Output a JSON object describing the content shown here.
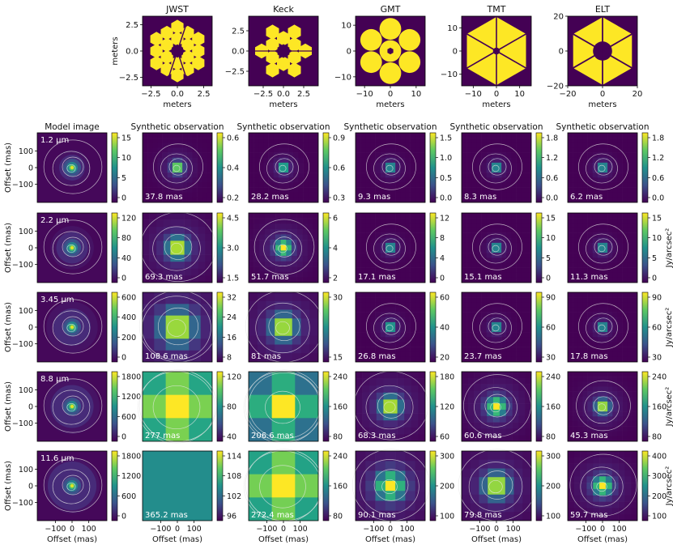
{
  "colors": {
    "viridis_dark": "#440154",
    "viridis_yellow": "#fde725",
    "contour": "#e8e8e8",
    "axis": "#000000"
  },
  "aperture_row": {
    "xlabel": "meters",
    "ylabel": "meters",
    "panels": [
      {
        "title": "JWST",
        "xticks": [
          "−2.5",
          "0.0",
          "2.5"
        ],
        "yticks": [
          "2.5",
          "0.0",
          "−2.5"
        ],
        "ylabel_shown": true
      },
      {
        "title": "Keck",
        "xticks": [
          "−2.5",
          "0.0",
          "2.5"
        ],
        "yticks": [
          "2.5",
          "0.0",
          "−2.5"
        ],
        "ylabel_shown": false
      },
      {
        "title": "GMT",
        "xticks": [
          "−10",
          "0",
          "10"
        ],
        "yticks": [
          "10",
          "0",
          "−10"
        ],
        "ylabel_shown": false
      },
      {
        "title": "TMT",
        "xticks": [
          "−10",
          "0",
          "10"
        ],
        "yticks": [
          "10",
          "0",
          "−10"
        ],
        "ylabel_shown": false
      },
      {
        "title": "ELT",
        "xticks": [
          "−20",
          "0",
          "20"
        ],
        "yticks": [
          "20",
          "0",
          "−20"
        ],
        "ylabel_shown": false
      }
    ]
  },
  "grid": {
    "column_titles": [
      "Model image",
      "Synthetic observation",
      "Synthetic observation",
      "Synthetic observation",
      "Synthetic observation",
      "Synthetic observation"
    ],
    "ylabel": "Offset (mas)",
    "xlabel": "Offset (mas)",
    "ylabel_ticks": [
      "100",
      "0",
      "−100"
    ],
    "xlabel_ticks": [
      "−100",
      "0",
      "100"
    ],
    "colorbar_unit": "Jy/arcsec²",
    "rows": [
      {
        "wavelength": "1.2 μm",
        "resolutions": [
          "37.8 mas",
          "28.2 mas",
          "9.3 mas",
          "8.3 mas",
          "6.2 mas"
        ],
        "cbar_ticks": [
          [
            "15",
            "10",
            "5",
            "0"
          ],
          [
            "0.6",
            "0.4",
            "0.2"
          ],
          [
            "0.9",
            "0.6",
            "0.3"
          ],
          [
            "1.5",
            "1.0",
            "0.5",
            "0.0"
          ],
          [
            "1.8",
            "1.2",
            "0.6",
            "0.0"
          ],
          [
            "1.8",
            "1.2",
            "0.6",
            "0.0"
          ]
        ]
      },
      {
        "wavelength": "2.2 μm",
        "resolutions": [
          "69.3 mas",
          "51.7 mas",
          "17.1 mas",
          "15.1 mas",
          "11.3 mas"
        ],
        "cbar_ticks": [
          [
            "120",
            "80",
            "40",
            "0"
          ],
          [
            "4.5",
            "3.0",
            "1.5"
          ],
          [
            "6",
            "4",
            "2"
          ],
          [
            "12",
            "8",
            "4",
            "0"
          ],
          [
            "15",
            "10",
            "5",
            "0"
          ],
          [
            "15",
            "10",
            "5",
            "0"
          ]
        ]
      },
      {
        "wavelength": "3.45 μm",
        "resolutions": [
          "108.6 mas",
          "81 mas",
          "26.8 mas",
          "23.7 mas",
          "17.8 mas"
        ],
        "cbar_ticks": [
          [
            "600",
            "400",
            "200",
            "0"
          ],
          [
            "32",
            "24",
            "16",
            "8"
          ],
          [
            "30",
            "15"
          ],
          [
            "60",
            "40",
            "20"
          ],
          [
            "90",
            "60",
            "30"
          ],
          [
            "90",
            "60",
            "30"
          ]
        ]
      },
      {
        "wavelength": "8.8 μm",
        "resolutions": [
          "277 mas",
          "206.6 mas",
          "68.3 mas",
          "60.6 mas",
          "45.3 mas"
        ],
        "cbar_ticks": [
          [
            "1800",
            "1200",
            "600",
            "0"
          ],
          [
            "120",
            "80",
            "40"
          ],
          [
            "240",
            "160",
            "80"
          ],
          [
            "180",
            "120",
            "60"
          ],
          [
            "240",
            "160",
            "80"
          ],
          [
            "240",
            "160",
            "80"
          ]
        ]
      },
      {
        "wavelength": "11.6 μm",
        "resolutions": [
          "365.2 mas",
          "272.4 mas",
          "90.1 mas",
          "79.8 mas",
          "59.7 mas"
        ],
        "cbar_ticks": [
          [
            "1800",
            "1200",
            "600",
            "0"
          ],
          [
            "114",
            "108",
            "102",
            "96"
          ],
          [
            "240",
            "160",
            "80"
          ],
          [
            "300",
            "200",
            "100"
          ],
          [
            "300",
            "200",
            "100"
          ],
          [
            "400",
            "300",
            "200",
            "100"
          ]
        ]
      }
    ]
  },
  "chart_data": {
    "type": "heatmap",
    "x_range_mas": [
      -150,
      150
    ],
    "y_range_mas": [
      -150,
      150
    ],
    "telescopes": [
      "JWST",
      "Keck",
      "GMT",
      "TMT",
      "ELT"
    ],
    "wavelengths_um": [
      1.2,
      2.2,
      3.45,
      8.8,
      11.6
    ],
    "resolution_mas": {
      "JWST": [
        37.8,
        69.3,
        108.6,
        277,
        365.2
      ],
      "Keck": [
        28.2,
        51.7,
        81,
        206.6,
        272.4
      ],
      "GMT": [
        9.3,
        17.1,
        26.8,
        68.3,
        90.1
      ],
      "TMT": [
        8.3,
        15.1,
        23.7,
        60.6,
        79.8
      ],
      "ELT": [
        6.2,
        11.3,
        17.8,
        45.3,
        59.7
      ]
    },
    "colorscale": "viridis",
    "colorbar_unit": "Jy/arcsec²"
  }
}
